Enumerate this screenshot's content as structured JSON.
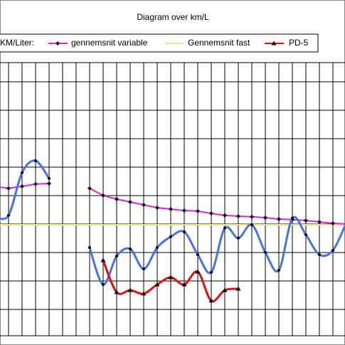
{
  "chart_data": {
    "type": "line",
    "title": "Diagram over km/L",
    "categories": [
      null,
      null,
      null,
      null,
      null,
      null,
      null,
      null,
      null,
      null,
      null,
      null,
      null,
      null,
      null,
      null,
      null,
      null,
      null,
      null,
      null,
      null,
      null,
      null,
      null,
      null,
      null
    ],
    "ylim": [
      0,
      9.6
    ],
    "series": [
      {
        "name": "KM/Liter:",
        "color": "#4472e8",
        "marker": "dot",
        "smooth": true,
        "values": [
          4.18,
          4.23,
          5.73,
          6.15,
          5.53,
          null,
          null,
          3.1,
          1.8,
          2.8,
          3.05,
          2.35,
          3.1,
          3.48,
          3.65,
          2.85,
          2.23,
          3.78,
          3.43,
          3.9,
          2.93,
          2.3,
          4.13,
          3.55,
          2.85,
          3.0,
          3.98
        ]
      },
      {
        "name": "gennemsnit variable",
        "color": "#e020e0",
        "marker": "diamond",
        "smooth": false,
        "values": [
          5.25,
          5.18,
          5.25,
          5.33,
          5.35,
          null,
          null,
          5.18,
          4.93,
          4.8,
          4.7,
          4.6,
          4.5,
          4.45,
          4.4,
          4.38,
          4.3,
          4.23,
          4.2,
          4.18,
          4.15,
          4.1,
          4.08,
          4.05,
          4.0,
          3.95,
          3.93
        ]
      },
      {
        "name": "Gennemsnit fast",
        "color": "#f0e68c",
        "marker": "none",
        "smooth": false,
        "values": [
          3.9,
          3.9,
          3.9,
          3.9,
          3.9,
          3.9,
          3.9,
          3.9,
          3.9,
          3.9,
          3.9,
          3.9,
          3.9,
          3.9,
          3.9,
          3.9,
          3.9,
          3.9,
          3.9,
          3.9,
          3.9,
          3.9,
          3.9,
          3.9,
          3.9,
          3.9,
          3.9
        ]
      },
      {
        "name": "PD-5",
        "color": "#e01010",
        "marker": "triangle",
        "smooth": true,
        "values": [
          null,
          null,
          null,
          null,
          null,
          null,
          null,
          null,
          2.65,
          1.53,
          1.6,
          1.48,
          1.8,
          2.05,
          1.8,
          2.25,
          1.23,
          1.6,
          1.65,
          null,
          null,
          null,
          null,
          null,
          null,
          null,
          null
        ]
      }
    ]
  }
}
